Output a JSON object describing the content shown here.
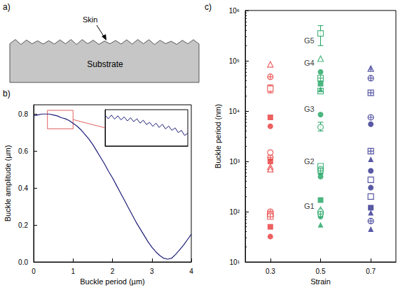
{
  "diagram": {
    "letter": "a)",
    "skin": "Skin",
    "substrate": "Substrate"
  },
  "chart_data": [
    {
      "letter": "b)",
      "type": "line",
      "x_label": "Buckle period (µm)",
      "y_label": "Buckle amplitude (µm)",
      "color": "#1c1c78",
      "grid": false,
      "xlim": [
        0,
        4
      ],
      "xticks": [
        0,
        1,
        2,
        3,
        4
      ],
      "ylim": [
        0,
        0.85
      ],
      "yticks": [
        {
          "value": 0,
          "label": "0.0"
        },
        0.2,
        0.4,
        0.6,
        0.8
      ],
      "x": [
        0,
        0.1,
        0.2,
        0.3,
        0.4,
        0.5,
        0.6,
        0.7,
        0.8,
        0.9,
        1.0,
        1.1,
        1.2,
        1.3,
        1.4,
        1.5,
        1.6,
        1.7,
        1.8,
        1.9,
        2.0,
        2.1,
        2.2,
        2.3,
        2.4,
        2.5,
        2.6,
        2.7,
        2.8,
        2.9,
        3.0,
        3.1,
        3.2,
        3.3,
        3.4,
        3.5,
        3.6,
        3.7,
        3.8,
        3.9,
        4.0
      ],
      "values": [
        0.79,
        0.795,
        0.8,
        0.8,
        0.8,
        0.795,
        0.79,
        0.78,
        0.775,
        0.765,
        0.75,
        0.735,
        0.715,
        0.69,
        0.665,
        0.635,
        0.6,
        0.565,
        0.53,
        0.49,
        0.455,
        0.415,
        0.375,
        0.335,
        0.295,
        0.255,
        0.215,
        0.18,
        0.145,
        0.11,
        0.08,
        0.055,
        0.035,
        0.02,
        0.015,
        0.02,
        0.04,
        0.065,
        0.09,
        0.12,
        0.15
      ],
      "inset": {
        "type": "line",
        "color": "#1c1c78",
        "tick_labels": false,
        "xlim": [
          0.35,
          1.0
        ],
        "ylim": [
          0.72,
          0.82
        ],
        "x": [
          0.35,
          0.375,
          0.4,
          0.425,
          0.45,
          0.475,
          0.5,
          0.525,
          0.55,
          0.575,
          0.6,
          0.625,
          0.65,
          0.675,
          0.7,
          0.725,
          0.75,
          0.775,
          0.8,
          0.825,
          0.85,
          0.875,
          0.9,
          0.925,
          0.95,
          0.975,
          1.0
        ],
        "values": [
          0.805,
          0.795,
          0.805,
          0.794,
          0.803,
          0.792,
          0.8,
          0.789,
          0.798,
          0.787,
          0.795,
          0.783,
          0.791,
          0.779,
          0.785,
          0.774,
          0.783,
          0.771,
          0.78,
          0.767,
          0.775,
          0.763,
          0.77,
          0.757,
          0.763,
          0.749,
          0.755
        ],
        "box_color": "#e06060"
      }
    },
    {
      "letter": "c)",
      "type": "scatter",
      "x_label": "Strain",
      "y_label": "Buckle period (nm)",
      "log": "y",
      "grid": false,
      "xlim": [
        0.2,
        0.8
      ],
      "xticks": [
        0.3,
        0.5,
        0.7
      ],
      "ylim": [
        10,
        1000000
      ],
      "yticks": [
        {
          "value": 10,
          "label": "10¹"
        },
        {
          "value": 100,
          "label": "10²"
        },
        {
          "value": 1000,
          "label": "10³"
        },
        {
          "value": 10000,
          "label": "10⁴"
        },
        {
          "value": 100000,
          "label": "10⁵"
        },
        {
          "value": 1000000,
          "label": "10⁶"
        }
      ],
      "annotations": [
        {
          "text": "G1",
          "x": 0.455,
          "y": 130
        },
        {
          "text": "G2",
          "x": 0.455,
          "y": 1000
        },
        {
          "text": "G3",
          "x": 0.455,
          "y": 11000
        },
        {
          "text": "G4",
          "x": 0.455,
          "y": 90000
        },
        {
          "text": "G5",
          "x": 0.455,
          "y": 250000
        }
      ],
      "series": [
        {
          "color": "#e8393a",
          "marker": "open_triangle",
          "x": [
            0.3,
            0.3,
            0.3
          ],
          "values": [
            85000,
            780,
            700
          ]
        },
        {
          "color": "#e8393a",
          "marker": "crossed_circle",
          "x": [
            0.3,
            0.3,
            0.3
          ],
          "values": [
            48000,
            1200,
            100
          ]
        },
        {
          "color": "#e8393a",
          "marker": "open_square",
          "x": [
            0.3,
            0.3
          ],
          "values": [
            28000,
            90
          ],
          "errors": [
            [
              23000,
              33000
            ],
            null
          ]
        },
        {
          "color": "#e8393a",
          "marker": "square",
          "x": [
            0.3,
            0.3,
            0.3
          ],
          "values": [
            7500,
            1000,
            50
          ]
        },
        {
          "color": "#e8393a",
          "marker": "circle",
          "x": [
            0.3,
            0.3
          ],
          "values": [
            5000,
            32
          ]
        },
        {
          "color": "#e8393a",
          "marker": "open_circle",
          "x": [
            0.3,
            0.3
          ],
          "values": [
            1500,
            85
          ]
        },
        {
          "color": "#e8393a",
          "marker": "crossed_square",
          "x": [
            0.3
          ],
          "values": [
            80
          ]
        },
        {
          "color": "#1fa462",
          "marker": "open_square",
          "x": [
            0.5,
            0.5,
            0.5
          ],
          "values": [
            350000,
            25000,
            800
          ],
          "errors": [
            [
              200000,
              500000
            ],
            null,
            null
          ]
        },
        {
          "color": "#1fa462",
          "marker": "open_triangle",
          "x": [
            0.5,
            0.5
          ],
          "values": [
            110000,
            110
          ]
        },
        {
          "color": "#1fa462",
          "marker": "circle",
          "x": [
            0.5,
            0.5,
            0.5,
            0.5
          ],
          "values": [
            60000,
            8500,
            500,
            80
          ]
        },
        {
          "color": "#1fa462",
          "marker": "crossed_square",
          "x": [
            0.5
          ],
          "values": [
            45000
          ]
        },
        {
          "color": "#1fa462",
          "marker": "square",
          "x": [
            0.5,
            0.5,
            0.5
          ],
          "values": [
            35000,
            620,
            170
          ]
        },
        {
          "color": "#1fa462",
          "marker": "triangle",
          "x": [
            0.5,
            0.5
          ],
          "values": [
            27000,
            55
          ]
        },
        {
          "color": "#1fa462",
          "marker": "open_circle",
          "x": [
            0.5,
            0.5,
            0.5
          ],
          "values": [
            4800,
            700,
            100
          ],
          "errors": [
            [
              4000,
              6000
            ],
            null,
            null
          ]
        },
        {
          "color": "#1fa462",
          "marker": "crossed_circle",
          "x": [
            0.5,
            0.5
          ],
          "values": [
            650,
            90
          ]
        },
        {
          "color": "#2e2e8f",
          "marker": "crossed_triangle",
          "x": [
            0.7
          ],
          "values": [
            70000
          ]
        },
        {
          "color": "#2e2e8f",
          "marker": "crossed_circle",
          "x": [
            0.7,
            0.7,
            0.7
          ],
          "values": [
            45000,
            7500,
            65
          ]
        },
        {
          "color": "#2e2e8f",
          "marker": "crossed_square",
          "x": [
            0.7,
            0.7
          ],
          "values": [
            23000,
            1600
          ]
        },
        {
          "color": "#2e2e8f",
          "marker": "circle",
          "x": [
            0.7,
            0.7,
            0.7
          ],
          "values": [
            5500,
            650,
            300
          ]
        },
        {
          "color": "#2e2e8f",
          "marker": "triangle",
          "x": [
            0.7,
            0.7,
            0.7
          ],
          "values": [
            1100,
            95,
            45
          ]
        },
        {
          "color": "#2e2e8f",
          "marker": "open_square",
          "x": [
            0.7,
            0.7
          ],
          "values": [
            430,
            200
          ]
        },
        {
          "color": "#2e2e8f",
          "marker": "square",
          "x": [
            0.7
          ],
          "values": [
            120
          ]
        }
      ]
    }
  ]
}
